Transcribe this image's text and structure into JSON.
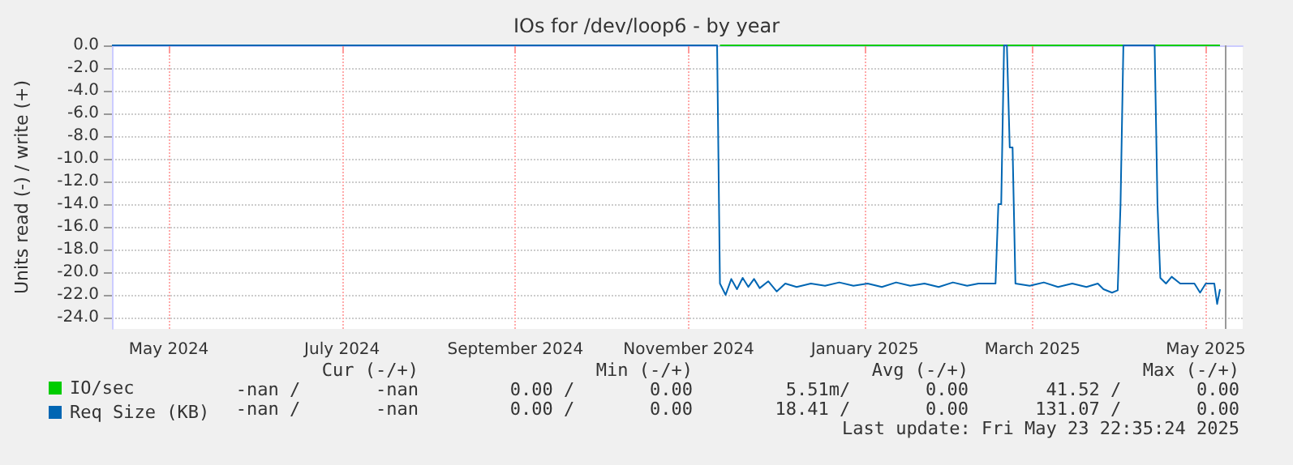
{
  "chart_data": {
    "type": "line",
    "title": "IOs for /dev/loop6 - by year",
    "ylabel": "Units read (-) / write (+)",
    "x": [
      "2024-04-26",
      "2024-11-25",
      "2024-11-26",
      "2024-11-28",
      "2024-11-30",
      "2024-12-02",
      "2024-12-04",
      "2024-12-06",
      "2024-12-08",
      "2024-12-10",
      "2024-12-13",
      "2024-12-16",
      "2024-12-19",
      "2024-12-23",
      "2024-12-28",
      "2025-01-02",
      "2025-01-07",
      "2025-01-12",
      "2025-01-17",
      "2025-01-22",
      "2025-01-27",
      "2025-02-01",
      "2025-02-06",
      "2025-02-11",
      "2025-02-16",
      "2025-02-21",
      "2025-02-25",
      "2025-03-03",
      "2025-03-04",
      "2025-03-05",
      "2025-03-06",
      "2025-03-07",
      "2025-03-08",
      "2025-03-09",
      "2025-03-10",
      "2025-03-15",
      "2025-03-20",
      "2025-03-25",
      "2025-03-30",
      "2025-04-04",
      "2025-04-08",
      "2025-04-10",
      "2025-04-13",
      "2025-04-15",
      "2025-04-16",
      "2025-04-17",
      "2025-04-28",
      "2025-04-29",
      "2025-04-30",
      "2025-05-02",
      "2025-05-04",
      "2025-05-07",
      "2025-05-12",
      "2025-05-14",
      "2025-05-16",
      "2025-05-19",
      "2025-05-20",
      "2025-05-21"
    ],
    "series": [
      {
        "name": "IO/sec",
        "color": "#00cc00",
        "values": [
          null,
          null,
          0,
          0,
          0,
          0,
          0,
          0,
          0,
          0,
          0,
          0,
          0,
          0,
          0,
          0,
          0,
          0,
          0,
          0,
          0,
          0,
          0,
          0,
          0,
          0,
          0,
          0,
          0,
          0,
          0,
          0,
          0,
          0,
          0,
          0,
          0,
          0,
          0,
          0,
          0,
          0,
          0,
          0,
          0,
          0,
          0,
          0,
          0,
          0,
          0,
          0,
          0,
          0,
          0,
          0,
          0,
          0
        ]
      },
      {
        "name": "Req Size (KB)",
        "color": "#0066b3",
        "values": [
          0,
          0,
          -21.0,
          -22.0,
          -20.6,
          -21.5,
          -20.5,
          -21.3,
          -20.6,
          -21.4,
          -20.8,
          -21.7,
          -21.0,
          -21.3,
          -21.0,
          -21.2,
          -20.9,
          -21.2,
          -21.0,
          -21.3,
          -20.9,
          -21.2,
          -21.0,
          -21.3,
          -20.9,
          -21.2,
          -21.0,
          -21.0,
          -14.0,
          -14.0,
          0,
          0,
          -9.0,
          -9.0,
          -21.0,
          -21.2,
          -20.9,
          -21.3,
          -21.0,
          -21.3,
          -21.0,
          -21.5,
          -21.8,
          -21.6,
          -14.0,
          0,
          0,
          -14.0,
          -20.5,
          -21.0,
          -20.4,
          -21.0,
          -21.0,
          -21.8,
          -21.0,
          -21.0,
          -22.8,
          -21.5
        ]
      }
    ],
    "xlim": [
      "2024-04-26",
      "2025-05-29"
    ],
    "xticks": [
      {
        "value": "2024-05-16",
        "label": "May 2024"
      },
      {
        "value": "2024-07-16",
        "label": "July 2024"
      },
      {
        "value": "2024-09-15",
        "label": "September 2024"
      },
      {
        "value": "2024-11-15",
        "label": "November 2024"
      },
      {
        "value": "2025-01-16",
        "label": "January 2025"
      },
      {
        "value": "2025-03-16",
        "label": "March 2025"
      },
      {
        "value": "2025-05-16",
        "label": "May 2025"
      }
    ],
    "ylim": [
      -25,
      0
    ],
    "yticks": [
      {
        "value": 0,
        "label": "0.0"
      },
      {
        "value": -2,
        "label": "-2.0"
      },
      {
        "value": -4,
        "label": "-4.0"
      },
      {
        "value": -6,
        "label": "-6.0"
      },
      {
        "value": -8,
        "label": "-8.0"
      },
      {
        "value": -10,
        "label": "-10.0"
      },
      {
        "value": -12,
        "label": "-12.0"
      },
      {
        "value": -14,
        "label": "-14.0"
      },
      {
        "value": -16,
        "label": "-16.0"
      },
      {
        "value": -18,
        "label": "-18.0"
      },
      {
        "value": -20,
        "label": "-20.0"
      },
      {
        "value": -22,
        "label": "-22.0"
      },
      {
        "value": -24,
        "label": "-24.0"
      }
    ],
    "ref_lines": [
      {
        "axis": "x",
        "value": "2025-05-23",
        "color": "#999999"
      }
    ],
    "grid": true,
    "legend": "bottom left",
    "marker": "none",
    "line_style": "solid",
    "annotations": [
      "Cur (-/+)",
      "Min (-/+)",
      "Avg (-/+)",
      "Max (-/+)",
      "-nan /       -nan",
      "0.00 /       0.00",
      "5.51m/       0.00",
      "41.52 /       0.00",
      "-nan /       -nan",
      "0.00 /       0.00",
      "18.41 /       0.00",
      "131.07 /       0.00",
      "Last update: Fri May 23 22:35:24 2025"
    ]
  }
}
